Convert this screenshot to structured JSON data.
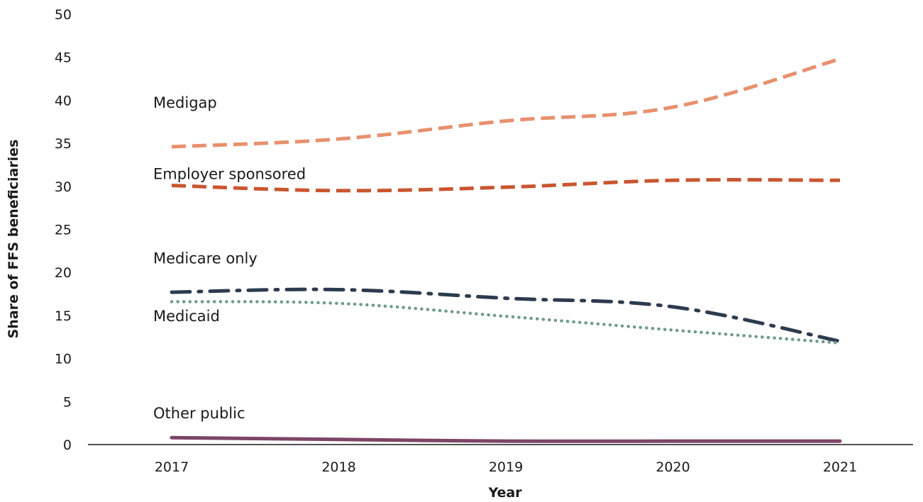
{
  "chart_data": {
    "type": "line",
    "title": "",
    "xlabel": "Year",
    "ylabel": "Share of FFS beneficiaries",
    "x": [
      "2017",
      "2018",
      "2019",
      "2020",
      "2021"
    ],
    "ylim": [
      0,
      50
    ],
    "yticks": [
      "0",
      "5",
      "10",
      "15",
      "20",
      "25",
      "30",
      "35",
      "40",
      "45",
      "50"
    ],
    "grid": false,
    "legend": "inline-labels",
    "series": [
      {
        "name": "Medigap",
        "values": [
          34.6,
          35.5,
          37.6,
          39.2,
          44.8
        ],
        "color": "#e8906e",
        "style": "dashed"
      },
      {
        "name": "Employer sponsored",
        "values": [
          30.1,
          29.5,
          29.9,
          30.7,
          30.7
        ],
        "color": "#c9552f",
        "style": "dashed"
      },
      {
        "name": "Medicare only",
        "values": [
          17.7,
          18.0,
          17.0,
          16.0,
          12.0
        ],
        "color": "#2d3b4f",
        "style": "dash-dot"
      },
      {
        "name": "Medicaid",
        "values": [
          16.6,
          16.4,
          14.9,
          13.3,
          11.8
        ],
        "color": "#6e9a8e",
        "style": "dotted"
      },
      {
        "name": "Other public",
        "values": [
          0.8,
          0.6,
          0.4,
          0.4,
          0.4
        ],
        "color": "#7d4565",
        "style": "solid"
      }
    ]
  }
}
